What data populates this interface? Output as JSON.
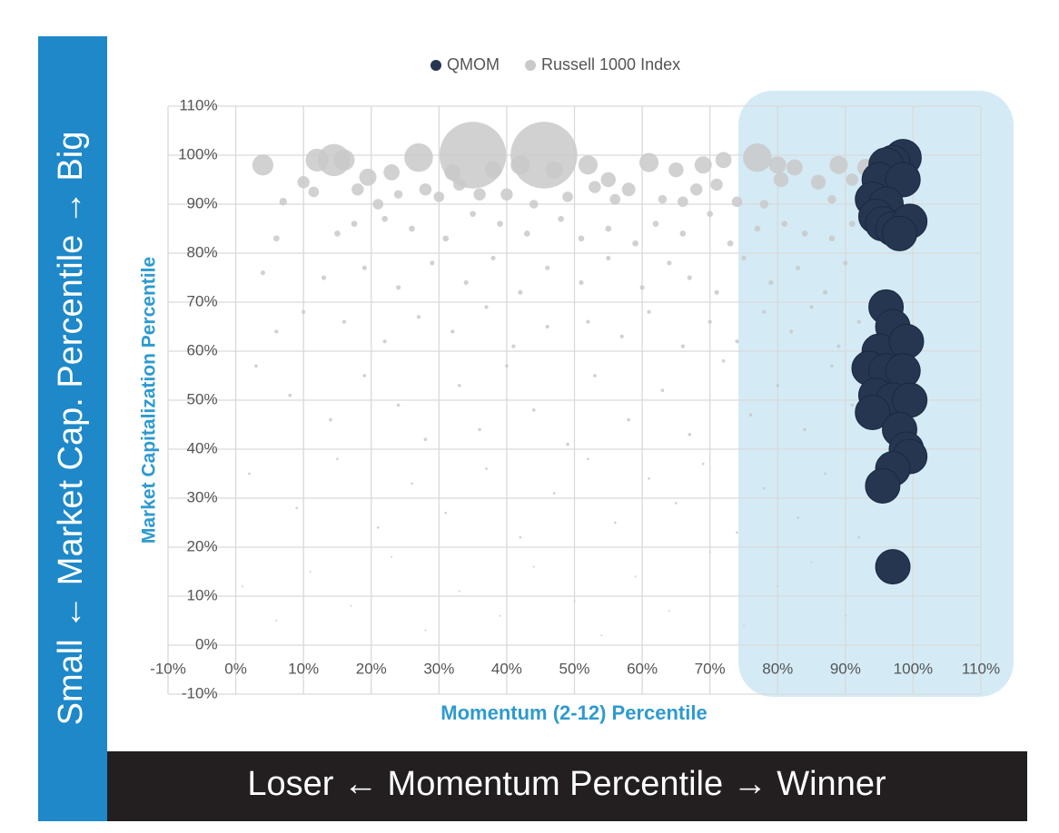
{
  "chart_data": {
    "type": "bubble",
    "x_label": "Momentum (2-12) Percentile",
    "y_label": "Market Capitalization Percentile",
    "annotations": [
      "Small ← Market Cap. Percentile → Big",
      "Loser ← Momentum Percentile → Winner"
    ],
    "xlim": [
      -10,
      110
    ],
    "ylim": [
      -10,
      110
    ],
    "xticks": [
      {
        "value": -10,
        "label": "-10%"
      },
      {
        "value": 0,
        "label": "0%"
      },
      {
        "value": 10,
        "label": "10%"
      },
      {
        "value": 20,
        "label": "20%"
      },
      {
        "value": 30,
        "label": "30%"
      },
      {
        "value": 40,
        "label": "40%"
      },
      {
        "value": 50,
        "label": "50%"
      },
      {
        "value": 60,
        "label": "60%"
      },
      {
        "value": 70,
        "label": "70%"
      },
      {
        "value": 80,
        "label": "80%"
      },
      {
        "value": 90,
        "label": "90%"
      },
      {
        "value": 100,
        "label": "100%"
      },
      {
        "value": 110,
        "label": "110%"
      }
    ],
    "yticks": [
      {
        "value": -10,
        "label": "-10%"
      },
      {
        "value": 0,
        "label": "0%"
      },
      {
        "value": 10,
        "label": "10%"
      },
      {
        "value": 20,
        "label": "20%"
      },
      {
        "value": 30,
        "label": "30%"
      },
      {
        "value": 40,
        "label": "40%"
      },
      {
        "value": 50,
        "label": "50%"
      },
      {
        "value": 60,
        "label": "60%"
      },
      {
        "value": 70,
        "label": "70%"
      },
      {
        "value": 80,
        "label": "80%"
      },
      {
        "value": 90,
        "label": "90%"
      },
      {
        "value": 100,
        "label": "100%"
      },
      {
        "value": 110,
        "label": "110%"
      }
    ],
    "grid": true,
    "series": [
      {
        "name": "Russell 1000 Index",
        "color": "#c9c9c9",
        "x": [
          35,
          45.5,
          14.5,
          27,
          4,
          12,
          19.5,
          23,
          32,
          38,
          42,
          47,
          52,
          61,
          65,
          69,
          72,
          77,
          80,
          82.5,
          89,
          93,
          16,
          55,
          58,
          7,
          10,
          11.5,
          18,
          21,
          24,
          28,
          30,
          33,
          36,
          40,
          44,
          49,
          53,
          56,
          63,
          66,
          68,
          71,
          74,
          78,
          80.5,
          86,
          88,
          91,
          6,
          15,
          17.5,
          22,
          26,
          31,
          35,
          39,
          43,
          48,
          51,
          55,
          59,
          62,
          66,
          70,
          73,
          77,
          81,
          84,
          88,
          91,
          4,
          13,
          19,
          24,
          29,
          34,
          38,
          42,
          46,
          51,
          55,
          60,
          64,
          67,
          71,
          75,
          79,
          83,
          87,
          90,
          6,
          10,
          16,
          22,
          27,
          32,
          37,
          41,
          46,
          52,
          57,
          61,
          66,
          70,
          74,
          78,
          82,
          85,
          89,
          92,
          3,
          8,
          14,
          19,
          24,
          28,
          33,
          36,
          40,
          44,
          49,
          53,
          58,
          63,
          67,
          72,
          76,
          80,
          84,
          88,
          91,
          2,
          9,
          15,
          21,
          26,
          31,
          37,
          42,
          47,
          52,
          56,
          61,
          65,
          69,
          74,
          78,
          83,
          87,
          92,
          1,
          6,
          11,
          17,
          23,
          28,
          33,
          39,
          44,
          50,
          54,
          59,
          64,
          70,
          75,
          80,
          85,
          90,
          95
        ],
        "values": [
          100,
          100,
          99,
          99.5,
          98,
          99,
          95.5,
          96.5,
          96.5,
          97,
          98,
          97,
          98,
          98.5,
          97,
          98,
          99,
          99.5,
          98,
          97.5,
          98,
          97.5,
          99,
          95,
          93,
          90.5,
          94.5,
          92.5,
          93,
          90,
          92,
          93,
          91.5,
          94,
          92,
          92,
          90,
          91.5,
          93.5,
          91,
          91,
          90.5,
          93,
          94,
          90.5,
          90,
          95,
          94.5,
          91,
          95,
          83,
          84,
          86,
          87,
          85,
          83,
          88,
          86,
          84,
          87,
          83,
          85,
          82,
          86,
          84,
          88,
          82,
          85,
          86,
          84,
          83,
          86,
          76,
          75,
          77,
          73,
          78,
          74,
          79,
          72,
          77,
          74,
          79,
          73,
          78,
          75,
          72,
          79,
          74,
          77,
          72,
          78,
          64,
          68,
          66,
          62,
          67,
          64,
          69,
          61,
          65,
          66,
          63,
          68,
          61,
          66,
          62,
          68,
          64,
          69,
          61,
          66,
          57,
          51,
          46,
          55,
          49,
          42,
          53,
          44,
          57,
          48,
          41,
          55,
          46,
          52,
          43,
          58,
          47,
          53,
          44,
          57,
          49,
          35,
          28,
          38,
          24,
          33,
          27,
          36,
          22,
          31,
          38,
          25,
          34,
          29,
          37,
          23,
          32,
          26,
          35,
          22,
          12,
          5,
          15,
          8,
          18,
          3,
          11,
          6,
          16,
          9,
          2,
          14,
          7,
          19,
          4,
          12,
          17,
          6,
          18
        ],
        "sizes": [
          6,
          6,
          1.4,
          1.1,
          0.6,
          0.7,
          0.4,
          0.35,
          0.35,
          0.4,
          0.5,
          0.4,
          0.5,
          0.5,
          0.3,
          0.4,
          0.35,
          1.1,
          0.4,
          0.35,
          0.45,
          0.4,
          0.6,
          0.3,
          0.25,
          0.08,
          0.2,
          0.15,
          0.2,
          0.15,
          0.1,
          0.2,
          0.15,
          0.2,
          0.2,
          0.2,
          0.1,
          0.15,
          0.2,
          0.15,
          0.1,
          0.15,
          0.2,
          0.2,
          0.15,
          0.1,
          0.3,
          0.3,
          0.1,
          0.2,
          0.05,
          0.05,
          0.05,
          0.05,
          0.05,
          0.05,
          0.05,
          0.05,
          0.05,
          0.05,
          0.05,
          0.05,
          0.05,
          0.05,
          0.05,
          0.05,
          0.05,
          0.05,
          0.05,
          0.05,
          0.05,
          0.05,
          0.03,
          0.03,
          0.03,
          0.03,
          0.03,
          0.03,
          0.03,
          0.03,
          0.03,
          0.03,
          0.03,
          0.03,
          0.03,
          0.03,
          0.03,
          0.03,
          0.03,
          0.03,
          0.03,
          0.03,
          0.02,
          0.02,
          0.02,
          0.02,
          0.02,
          0.02,
          0.02,
          0.02,
          0.02,
          0.02,
          0.02,
          0.02,
          0.02,
          0.02,
          0.02,
          0.02,
          0.02,
          0.02,
          0.02,
          0.02,
          0.015,
          0.015,
          0.015,
          0.015,
          0.015,
          0.015,
          0.015,
          0.015,
          0.015,
          0.015,
          0.015,
          0.015,
          0.015,
          0.015,
          0.015,
          0.015,
          0.015,
          0.015,
          0.015,
          0.015,
          0.015,
          0.008,
          0.008,
          0.008,
          0.008,
          0.008,
          0.008,
          0.008,
          0.008,
          0.008,
          0.008,
          0.008,
          0.008,
          0.008,
          0.008,
          0.008,
          0.008,
          0.008,
          0.008,
          0.008,
          0.004,
          0.004,
          0.004,
          0.004,
          0.004,
          0.004,
          0.004,
          0.004,
          0.004,
          0.004,
          0.004,
          0.004,
          0.004,
          0.004,
          0.004,
          0.004,
          0.004,
          0.004,
          0.004
        ]
      },
      {
        "name": "QMOM",
        "color": "#263650",
        "x": [
          98.5,
          97,
          96,
          95,
          98.5,
          94,
          96,
          94.5,
          95.5,
          97,
          99.5,
          98,
          96,
          97,
          95,
          99,
          93.5,
          96,
          98.5,
          94.5,
          97,
          99.5,
          94,
          98,
          99,
          99.5,
          97,
          95.5,
          97
        ],
        "values": [
          99.5,
          98.5,
          98,
          95,
          95,
          91,
          90,
          87.5,
          86,
          85,
          86.5,
          84,
          69,
          65,
          60,
          62,
          56.5,
          56,
          56,
          51,
          50,
          50,
          47.5,
          44,
          40,
          38.5,
          36,
          32.5,
          16
        ],
        "sizes": [
          1.8,
          1.6,
          1.6,
          1.6,
          1.6,
          1.6,
          1.6,
          1.6,
          1.6,
          1.6,
          1.6,
          1.6,
          1.6,
          1.6,
          1.6,
          1.6,
          1.6,
          1.6,
          1.6,
          1.6,
          1.6,
          1.6,
          1.6,
          1.6,
          1.6,
          1.6,
          1.6,
          1.6,
          1.6
        ]
      }
    ]
  }
}
